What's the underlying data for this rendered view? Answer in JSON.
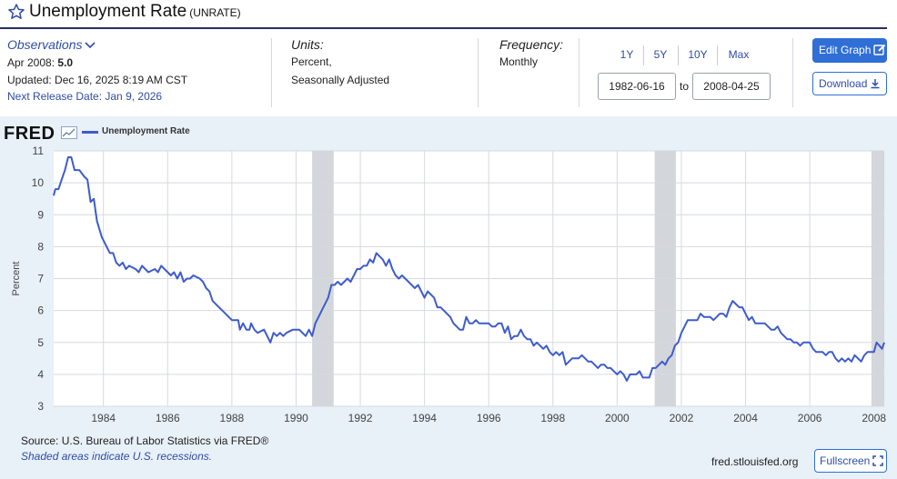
{
  "header": {
    "title": "Unemployment Rate",
    "series_id": "(UNRATE)"
  },
  "observations": {
    "label": "Observations",
    "date_label": "Apr 2008:",
    "value": "5.0",
    "updated": "Updated: Dec 16, 2025 8:19 AM CST",
    "next_release": "Next Release Date: Jan 9, 2026"
  },
  "units": {
    "label": "Units:",
    "line1": "Percent,",
    "line2": "Seasonally Adjusted"
  },
  "frequency": {
    "label": "Frequency:",
    "value": "Monthly"
  },
  "range": {
    "buttons": [
      "1Y",
      "5Y",
      "10Y",
      "Max"
    ],
    "start": "1982-06-16",
    "to_label": "to",
    "end": "2008-04-25"
  },
  "actions": {
    "edit_graph": "Edit Graph",
    "download": "Download",
    "fullscreen": "Fullscreen"
  },
  "footer": {
    "source": "Source: U.S. Bureau of Labor Statistics via FRED®",
    "shading_note": "Shaded areas indicate U.S. recessions.",
    "url": "fred.stlouisfed.org"
  },
  "logo": {
    "text": "FRED"
  },
  "colors": {
    "series": "#3e5ccc",
    "recession": "#d3d6db",
    "accent": "#2f6fd6",
    "link": "#2f4da8"
  },
  "chart_data": {
    "type": "line",
    "title": "Unemployment Rate",
    "ylabel": "Percent",
    "xlabel": "",
    "xlim": [
      1982.45,
      2008.32
    ],
    "ylim": [
      3,
      11
    ],
    "yticks": [
      3,
      4,
      5,
      6,
      7,
      8,
      9,
      10,
      11
    ],
    "xticks": [
      1984,
      1986,
      1988,
      1990,
      1992,
      1994,
      1996,
      1998,
      2000,
      2002,
      2004,
      2006,
      2008
    ],
    "recessions": [
      [
        1990.5,
        1991.17
      ],
      [
        2001.17,
        2001.83
      ],
      [
        2007.92,
        2008.32
      ]
    ],
    "series": [
      {
        "name": "Unemployment Rate",
        "points": [
          [
            1982.45,
            9.6
          ],
          [
            1982.5,
            9.8
          ],
          [
            1982.6,
            9.8
          ],
          [
            1982.7,
            10.1
          ],
          [
            1982.8,
            10.4
          ],
          [
            1982.9,
            10.8
          ],
          [
            1983.0,
            10.8
          ],
          [
            1983.1,
            10.4
          ],
          [
            1983.25,
            10.4
          ],
          [
            1983.4,
            10.2
          ],
          [
            1983.5,
            10.1
          ],
          [
            1983.6,
            9.4
          ],
          [
            1983.7,
            9.5
          ],
          [
            1983.8,
            8.8
          ],
          [
            1983.95,
            8.3
          ],
          [
            1984.1,
            8.0
          ],
          [
            1984.2,
            7.8
          ],
          [
            1984.3,
            7.8
          ],
          [
            1984.4,
            7.5
          ],
          [
            1984.5,
            7.4
          ],
          [
            1984.6,
            7.5
          ],
          [
            1984.7,
            7.3
          ],
          [
            1984.8,
            7.4
          ],
          [
            1985.0,
            7.3
          ],
          [
            1985.1,
            7.2
          ],
          [
            1985.2,
            7.4
          ],
          [
            1985.3,
            7.3
          ],
          [
            1985.4,
            7.2
          ],
          [
            1985.6,
            7.3
          ],
          [
            1985.7,
            7.2
          ],
          [
            1985.8,
            7.4
          ],
          [
            1986.0,
            7.2
          ],
          [
            1986.1,
            7.1
          ],
          [
            1986.2,
            7.2
          ],
          [
            1986.3,
            7.0
          ],
          [
            1986.4,
            7.2
          ],
          [
            1986.5,
            6.9
          ],
          [
            1986.6,
            7.0
          ],
          [
            1986.7,
            7.0
          ],
          [
            1986.8,
            7.1
          ],
          [
            1987.0,
            7.0
          ],
          [
            1987.1,
            6.9
          ],
          [
            1987.2,
            6.7
          ],
          [
            1987.3,
            6.6
          ],
          [
            1987.4,
            6.3
          ],
          [
            1987.5,
            6.2
          ],
          [
            1987.6,
            6.1
          ],
          [
            1987.7,
            6.0
          ],
          [
            1987.8,
            5.9
          ],
          [
            1988.0,
            5.7
          ],
          [
            1988.1,
            5.7
          ],
          [
            1988.2,
            5.7
          ],
          [
            1988.25,
            5.4
          ],
          [
            1988.35,
            5.6
          ],
          [
            1988.45,
            5.4
          ],
          [
            1988.55,
            5.4
          ],
          [
            1988.6,
            5.6
          ],
          [
            1988.7,
            5.4
          ],
          [
            1988.8,
            5.3
          ],
          [
            1989.0,
            5.4
          ],
          [
            1989.1,
            5.2
          ],
          [
            1989.2,
            5.0
          ],
          [
            1989.3,
            5.3
          ],
          [
            1989.4,
            5.2
          ],
          [
            1989.5,
            5.3
          ],
          [
            1989.6,
            5.2
          ],
          [
            1989.7,
            5.3
          ],
          [
            1989.9,
            5.4
          ],
          [
            1990.1,
            5.4
          ],
          [
            1990.2,
            5.3
          ],
          [
            1990.3,
            5.2
          ],
          [
            1990.4,
            5.4
          ],
          [
            1990.5,
            5.2
          ],
          [
            1990.6,
            5.6
          ],
          [
            1990.7,
            5.8
          ],
          [
            1990.8,
            6.0
          ],
          [
            1990.9,
            6.2
          ],
          [
            1991.0,
            6.4
          ],
          [
            1991.1,
            6.8
          ],
          [
            1991.2,
            6.8
          ],
          [
            1991.3,
            6.9
          ],
          [
            1991.4,
            6.8
          ],
          [
            1991.5,
            6.9
          ],
          [
            1991.6,
            7.0
          ],
          [
            1991.7,
            6.9
          ],
          [
            1991.8,
            7.1
          ],
          [
            1991.9,
            7.3
          ],
          [
            1992.0,
            7.3
          ],
          [
            1992.1,
            7.4
          ],
          [
            1992.2,
            7.4
          ],
          [
            1992.3,
            7.6
          ],
          [
            1992.4,
            7.5
          ],
          [
            1992.5,
            7.8
          ],
          [
            1992.6,
            7.7
          ],
          [
            1992.7,
            7.6
          ],
          [
            1992.8,
            7.4
          ],
          [
            1992.9,
            7.6
          ],
          [
            1993.0,
            7.3
          ],
          [
            1993.1,
            7.1
          ],
          [
            1993.2,
            7.0
          ],
          [
            1993.3,
            7.1
          ],
          [
            1993.4,
            7.0
          ],
          [
            1993.5,
            6.9
          ],
          [
            1993.6,
            6.8
          ],
          [
            1993.7,
            6.7
          ],
          [
            1993.8,
            6.8
          ],
          [
            1993.9,
            6.6
          ],
          [
            1994.0,
            6.4
          ],
          [
            1994.1,
            6.6
          ],
          [
            1994.2,
            6.5
          ],
          [
            1994.3,
            6.4
          ],
          [
            1994.4,
            6.1
          ],
          [
            1994.5,
            6.1
          ],
          [
            1994.6,
            6.0
          ],
          [
            1994.7,
            5.9
          ],
          [
            1994.8,
            5.8
          ],
          [
            1994.9,
            5.6
          ],
          [
            1995.0,
            5.5
          ],
          [
            1995.1,
            5.4
          ],
          [
            1995.2,
            5.4
          ],
          [
            1995.3,
            5.8
          ],
          [
            1995.4,
            5.6
          ],
          [
            1995.5,
            5.6
          ],
          [
            1995.6,
            5.7
          ],
          [
            1995.7,
            5.6
          ],
          [
            1995.8,
            5.6
          ],
          [
            1995.9,
            5.6
          ],
          [
            1996.0,
            5.6
          ],
          [
            1996.1,
            5.5
          ],
          [
            1996.2,
            5.5
          ],
          [
            1996.3,
            5.6
          ],
          [
            1996.4,
            5.6
          ],
          [
            1996.5,
            5.3
          ],
          [
            1996.6,
            5.5
          ],
          [
            1996.7,
            5.1
          ],
          [
            1996.8,
            5.2
          ],
          [
            1996.9,
            5.2
          ],
          [
            1997.0,
            5.4
          ],
          [
            1997.1,
            5.2
          ],
          [
            1997.2,
            5.1
          ],
          [
            1997.3,
            5.1
          ],
          [
            1997.4,
            4.9
          ],
          [
            1997.5,
            5.0
          ],
          [
            1997.6,
            4.9
          ],
          [
            1997.7,
            4.8
          ],
          [
            1997.8,
            4.9
          ],
          [
            1997.9,
            4.7
          ],
          [
            1998.0,
            4.6
          ],
          [
            1998.1,
            4.7
          ],
          [
            1998.2,
            4.6
          ],
          [
            1998.3,
            4.7
          ],
          [
            1998.4,
            4.3
          ],
          [
            1998.5,
            4.4
          ],
          [
            1998.6,
            4.5
          ],
          [
            1998.7,
            4.5
          ],
          [
            1998.8,
            4.5
          ],
          [
            1998.9,
            4.6
          ],
          [
            1999.0,
            4.5
          ],
          [
            1999.1,
            4.4
          ],
          [
            1999.2,
            4.4
          ],
          [
            1999.3,
            4.3
          ],
          [
            1999.4,
            4.2
          ],
          [
            1999.5,
            4.3
          ],
          [
            1999.6,
            4.3
          ],
          [
            1999.7,
            4.2
          ],
          [
            1999.8,
            4.2
          ],
          [
            1999.9,
            4.1
          ],
          [
            2000.0,
            4.0
          ],
          [
            2000.1,
            4.1
          ],
          [
            2000.2,
            4.0
          ],
          [
            2000.3,
            3.8
          ],
          [
            2000.4,
            4.0
          ],
          [
            2000.5,
            4.0
          ],
          [
            2000.6,
            4.0
          ],
          [
            2000.7,
            4.1
          ],
          [
            2000.8,
            3.9
          ],
          [
            2000.9,
            3.9
          ],
          [
            2001.0,
            3.9
          ],
          [
            2001.1,
            4.2
          ],
          [
            2001.2,
            4.2
          ],
          [
            2001.3,
            4.3
          ],
          [
            2001.4,
            4.4
          ],
          [
            2001.5,
            4.3
          ],
          [
            2001.6,
            4.5
          ],
          [
            2001.7,
            4.6
          ],
          [
            2001.8,
            4.9
          ],
          [
            2001.9,
            5.0
          ],
          [
            2002.0,
            5.3
          ],
          [
            2002.1,
            5.5
          ],
          [
            2002.2,
            5.7
          ],
          [
            2002.3,
            5.7
          ],
          [
            2002.4,
            5.7
          ],
          [
            2002.5,
            5.7
          ],
          [
            2002.6,
            5.9
          ],
          [
            2002.7,
            5.8
          ],
          [
            2002.8,
            5.8
          ],
          [
            2002.9,
            5.8
          ],
          [
            2003.0,
            5.7
          ],
          [
            2003.1,
            5.8
          ],
          [
            2003.2,
            5.9
          ],
          [
            2003.3,
            5.9
          ],
          [
            2003.4,
            5.8
          ],
          [
            2003.5,
            6.1
          ],
          [
            2003.6,
            6.3
          ],
          [
            2003.7,
            6.2
          ],
          [
            2003.8,
            6.1
          ],
          [
            2003.9,
            6.1
          ],
          [
            2004.0,
            5.9
          ],
          [
            2004.1,
            5.7
          ],
          [
            2004.2,
            5.8
          ],
          [
            2004.3,
            5.6
          ],
          [
            2004.4,
            5.6
          ],
          [
            2004.5,
            5.6
          ],
          [
            2004.6,
            5.6
          ],
          [
            2004.7,
            5.5
          ],
          [
            2004.8,
            5.4
          ],
          [
            2004.9,
            5.4
          ],
          [
            2005.0,
            5.5
          ],
          [
            2005.1,
            5.3
          ],
          [
            2005.2,
            5.2
          ],
          [
            2005.3,
            5.1
          ],
          [
            2005.4,
            5.1
          ],
          [
            2005.5,
            5.0
          ],
          [
            2005.6,
            5.0
          ],
          [
            2005.7,
            4.9
          ],
          [
            2005.8,
            5.0
          ],
          [
            2005.9,
            5.0
          ],
          [
            2006.0,
            5.0
          ],
          [
            2006.1,
            4.8
          ],
          [
            2006.2,
            4.7
          ],
          [
            2006.3,
            4.7
          ],
          [
            2006.4,
            4.7
          ],
          [
            2006.5,
            4.6
          ],
          [
            2006.6,
            4.7
          ],
          [
            2006.7,
            4.7
          ],
          [
            2006.8,
            4.5
          ],
          [
            2006.9,
            4.4
          ],
          [
            2007.0,
            4.5
          ],
          [
            2007.1,
            4.4
          ],
          [
            2007.2,
            4.5
          ],
          [
            2007.3,
            4.4
          ],
          [
            2007.4,
            4.6
          ],
          [
            2007.5,
            4.5
          ],
          [
            2007.6,
            4.4
          ],
          [
            2007.7,
            4.6
          ],
          [
            2007.8,
            4.7
          ],
          [
            2007.9,
            4.7
          ],
          [
            2008.0,
            4.7
          ],
          [
            2008.08,
            5.0
          ],
          [
            2008.17,
            4.9
          ],
          [
            2008.25,
            4.8
          ],
          [
            2008.32,
            5.0
          ]
        ]
      }
    ]
  }
}
